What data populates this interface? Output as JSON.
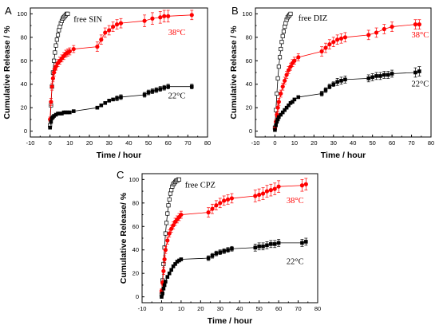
{
  "colors": {
    "free": "#000000",
    "38": "#ff0000",
    "22": "#000000"
  },
  "chart_data": [
    {
      "panel": "A",
      "type": "scatter",
      "xlabel": "Time / hour",
      "ylabel": "Cumulative Release / %",
      "xlim": [
        -10,
        80
      ],
      "ylim": [
        -5,
        105
      ],
      "xticks": [
        -10,
        0,
        10,
        20,
        30,
        40,
        50,
        60,
        70,
        80
      ],
      "yticks": [
        0,
        20,
        40,
        60,
        80,
        100
      ],
      "series": [
        {
          "name": "free SIN",
          "marker": "open-square",
          "color": "#000000",
          "x": [
            0,
            0.5,
            1,
            1.5,
            2,
            2.5,
            3,
            3.5,
            4,
            4.5,
            5,
            5.5,
            6,
            6.5,
            7,
            7.5,
            8,
            8.5,
            9
          ],
          "y": [
            5,
            22,
            38,
            50,
            60,
            67,
            73,
            78,
            82,
            86,
            89,
            92,
            94,
            96,
            97,
            98,
            99,
            100,
            100
          ]
        },
        {
          "name": "38°C",
          "marker": "filled-circle",
          "color": "#ff0000",
          "errorbars": true,
          "x": [
            0,
            0.5,
            1,
            1.5,
            2,
            2.5,
            3,
            4,
            5,
            6,
            7,
            8,
            9,
            10,
            12,
            24,
            26,
            28,
            30,
            32,
            34,
            36,
            48,
            52,
            56,
            58,
            60,
            72
          ],
          "y": [
            10,
            25,
            38,
            45,
            50,
            53,
            55,
            58,
            60,
            62,
            64,
            66,
            67,
            68,
            70,
            72,
            78,
            84,
            86,
            89,
            91,
            92,
            94,
            96,
            97,
            98,
            98,
            99
          ],
          "err": [
            2,
            3,
            3,
            3,
            3,
            3,
            3,
            3,
            3,
            3,
            3,
            3,
            3,
            3,
            3,
            4,
            4,
            4,
            4,
            4,
            4,
            4,
            5,
            5,
            5,
            5,
            5,
            4
          ]
        },
        {
          "name": "22°C",
          "marker": "filled-square",
          "color": "#000000",
          "errorbars": true,
          "x": [
            0,
            0.5,
            1,
            1.5,
            2,
            3,
            4,
            5,
            6,
            7,
            8,
            9,
            10,
            12,
            24,
            26,
            28,
            30,
            32,
            34,
            36,
            48,
            50,
            52,
            54,
            56,
            58,
            60,
            72
          ],
          "y": [
            3,
            8,
            11,
            12,
            13,
            14,
            15,
            15,
            15,
            16,
            16,
            16,
            16,
            17,
            20,
            22,
            24,
            26,
            27,
            28,
            29,
            31,
            33,
            34,
            35,
            36,
            37,
            38,
            38
          ],
          "err": [
            1,
            1,
            1,
            1,
            1,
            1,
            1,
            1,
            1,
            1,
            1,
            1,
            1,
            1,
            1,
            1,
            1,
            1,
            1,
            2,
            2,
            2,
            2,
            2,
            2,
            2,
            2,
            2,
            2
          ]
        }
      ],
      "annotations": [
        {
          "text": "free SIN",
          "x": 12,
          "y": 93,
          "color": "#000000"
        },
        {
          "text": "38°C",
          "x": 60,
          "y": 82,
          "color": "#ff0000"
        },
        {
          "text": "22°C",
          "x": 60,
          "y": 28,
          "color": "#000000"
        }
      ]
    },
    {
      "panel": "B",
      "type": "scatter",
      "xlabel": "Time / hour",
      "ylabel": "Cumulative Release / %",
      "xlim": [
        -10,
        80
      ],
      "ylim": [
        -5,
        105
      ],
      "xticks": [
        -10,
        0,
        10,
        20,
        30,
        40,
        50,
        60,
        70,
        80
      ],
      "yticks": [
        0,
        20,
        40,
        60,
        80,
        100
      ],
      "series": [
        {
          "name": "free DIZ",
          "marker": "open-square",
          "color": "#000000",
          "x": [
            0,
            0.5,
            1,
            1.5,
            2,
            2.5,
            3,
            3.5,
            4,
            4.5,
            5,
            5.5,
            6,
            6.5,
            7,
            7.5,
            8
          ],
          "y": [
            3,
            18,
            32,
            45,
            55,
            63,
            70,
            76,
            81,
            85,
            89,
            92,
            95,
            97,
            98,
            99,
            100
          ]
        },
        {
          "name": "38°C",
          "marker": "filled-circle",
          "color": "#ff0000",
          "errorbars": true,
          "x": [
            0,
            0.5,
            1,
            1.5,
            2,
            3,
            4,
            5,
            6,
            7,
            8,
            9,
            10,
            12,
            24,
            26,
            28,
            30,
            32,
            34,
            36,
            48,
            52,
            56,
            60,
            72,
            74
          ],
          "y": [
            2,
            8,
            14,
            20,
            25,
            32,
            38,
            43,
            48,
            52,
            55,
            58,
            60,
            63,
            68,
            71,
            74,
            76,
            78,
            79,
            80,
            82,
            84,
            87,
            89,
            91,
            91
          ],
          "err": [
            2,
            2,
            2,
            3,
            3,
            3,
            3,
            3,
            3,
            3,
            3,
            3,
            3,
            3,
            4,
            4,
            4,
            4,
            4,
            4,
            4,
            4,
            4,
            4,
            4,
            4,
            4
          ]
        },
        {
          "name": "22°C",
          "marker": "filled-square",
          "color": "#000000",
          "errorbars": true,
          "x": [
            0,
            0.5,
            1,
            1.5,
            2,
            3,
            4,
            5,
            6,
            7,
            8,
            9,
            10,
            12,
            24,
            26,
            28,
            30,
            32,
            34,
            36,
            48,
            50,
            52,
            54,
            56,
            58,
            60,
            72,
            74
          ],
          "y": [
            1,
            5,
            8,
            10,
            12,
            14,
            16,
            18,
            20,
            22,
            24,
            25,
            27,
            29,
            32,
            35,
            38,
            40,
            42,
            43,
            44,
            45,
            46,
            47,
            47,
            48,
            48,
            49,
            50,
            51
          ],
          "err": [
            1,
            1,
            1,
            1,
            1,
            1,
            1,
            1,
            1,
            1,
            1,
            1,
            1,
            1,
            2,
            2,
            2,
            2,
            3,
            3,
            3,
            3,
            3,
            3,
            3,
            3,
            3,
            3,
            4,
            4
          ]
        }
      ],
      "annotations": [
        {
          "text": "free DIZ",
          "x": 12,
          "y": 94,
          "color": "#000000"
        },
        {
          "text": "38°C",
          "x": 70,
          "y": 80,
          "color": "#ff0000"
        },
        {
          "text": "22°C",
          "x": 70,
          "y": 38,
          "color": "#000000"
        }
      ]
    },
    {
      "panel": "C",
      "type": "scatter",
      "xlabel": "Time / hour",
      "ylabel": "Cumulative Release/ %",
      "xlim": [
        -10,
        80
      ],
      "ylim": [
        -5,
        105
      ],
      "xticks": [
        -10,
        0,
        10,
        20,
        30,
        40,
        50,
        60,
        70,
        80
      ],
      "yticks": [
        0,
        20,
        40,
        60,
        80,
        100
      ],
      "series": [
        {
          "name": "free CPZ",
          "marker": "open-square",
          "color": "#000000",
          "x": [
            0,
            0.5,
            1,
            1.5,
            2,
            2.5,
            3,
            3.5,
            4,
            4.5,
            5,
            5.5,
            6,
            6.5,
            7,
            7.5,
            8,
            8.5,
            9
          ],
          "y": [
            2,
            14,
            28,
            42,
            54,
            63,
            71,
            78,
            83,
            88,
            91,
            94,
            96,
            97,
            98,
            99,
            99,
            100,
            100
          ]
        },
        {
          "name": "38°C",
          "marker": "filled-circle",
          "color": "#ff0000",
          "errorbars": true,
          "x": [
            0,
            0.5,
            1,
            1.5,
            2,
            3,
            4,
            5,
            6,
            7,
            8,
            9,
            10,
            24,
            26,
            28,
            30,
            32,
            34,
            36,
            48,
            50,
            52,
            54,
            56,
            58,
            60,
            72,
            74
          ],
          "y": [
            5,
            12,
            22,
            32,
            40,
            48,
            54,
            58,
            61,
            64,
            66,
            68,
            70,
            72,
            75,
            78,
            80,
            82,
            83,
            84,
            86,
            87,
            88,
            90,
            91,
            92,
            94,
            95,
            96
          ],
          "err": [
            2,
            2,
            3,
            3,
            3,
            3,
            3,
            3,
            3,
            3,
            3,
            3,
            3,
            4,
            4,
            4,
            4,
            4,
            4,
            4,
            5,
            5,
            5,
            5,
            5,
            5,
            5,
            5,
            5
          ]
        },
        {
          "name": "22°C",
          "marker": "filled-square",
          "color": "#000000",
          "errorbars": true,
          "x": [
            0,
            0.5,
            1,
            1.5,
            2,
            3,
            4,
            5,
            6,
            7,
            8,
            9,
            10,
            24,
            26,
            28,
            30,
            32,
            34,
            36,
            48,
            50,
            52,
            54,
            56,
            58,
            60,
            72,
            74
          ],
          "y": [
            0,
            3,
            7,
            10,
            13,
            17,
            20,
            23,
            26,
            28,
            30,
            31,
            32,
            33,
            35,
            37,
            38,
            39,
            40,
            41,
            42,
            43,
            43,
            44,
            45,
            45,
            46,
            46,
            47
          ],
          "err": [
            1,
            1,
            1,
            1,
            1,
            1,
            1,
            1,
            1,
            1,
            1,
            1,
            1,
            2,
            2,
            2,
            2,
            2,
            2,
            2,
            3,
            3,
            3,
            3,
            3,
            3,
            3,
            3,
            3
          ]
        }
      ],
      "annotations": [
        {
          "text": "free CPZ",
          "x": 12,
          "y": 93,
          "color": "#000000"
        },
        {
          "text": "38°C",
          "x": 64,
          "y": 80,
          "color": "#ff0000"
        },
        {
          "text": "22°C",
          "x": 64,
          "y": 28,
          "color": "#000000"
        }
      ]
    }
  ]
}
